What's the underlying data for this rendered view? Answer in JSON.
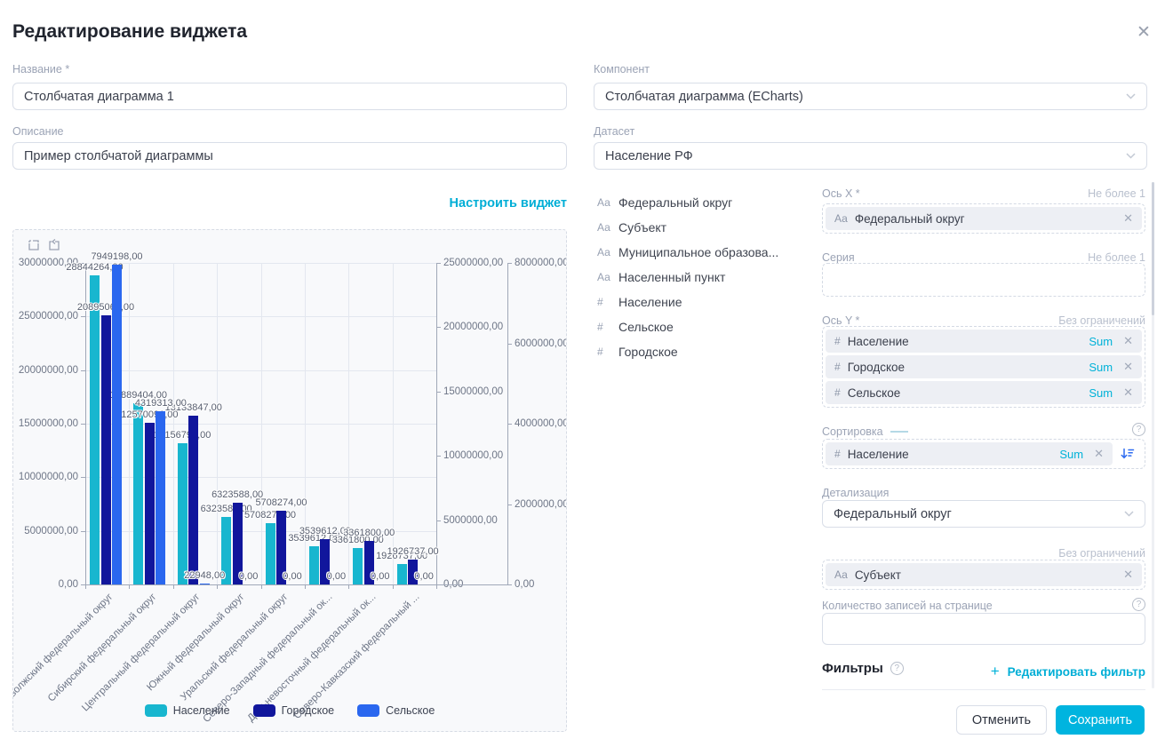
{
  "dialog": {
    "title": "Редактирование виджета"
  },
  "left_panel": {
    "name": {
      "label": "Название *",
      "value": "Столбчатая диаграмма 1"
    },
    "description": {
      "label": "Описание",
      "value": "Пример столбчатой диаграммы"
    },
    "configure_link": "Настроить виджет"
  },
  "right_panel": {
    "component": {
      "label": "Компонент",
      "value": "Столбчатая диаграмма (ECharts)"
    },
    "dataset": {
      "label": "Датасет",
      "value": "Население РФ"
    },
    "fields": [
      {
        "prefix": "Аа",
        "label": "Федеральный округ"
      },
      {
        "prefix": "Аа",
        "label": "Субъект"
      },
      {
        "prefix": "Аа",
        "label": "Муниципальное образова..."
      },
      {
        "prefix": "Аа",
        "label": "Населенный пункт"
      },
      {
        "prefix": "#",
        "label": "Население"
      },
      {
        "prefix": "#",
        "label": "Сельское"
      },
      {
        "prefix": "#",
        "label": "Городское"
      }
    ],
    "axis_x": {
      "label": "Ось X *",
      "limit": "Не более 1",
      "chips": [
        {
          "prefix": "Аа",
          "label": "Федеральный округ"
        }
      ]
    },
    "series_slot": {
      "label": "Серия",
      "limit": "Не более 1",
      "chips": []
    },
    "axis_y": {
      "label": "Ось Y *",
      "limit": "Без ограничений",
      "chips": [
        {
          "prefix": "#",
          "label": "Население",
          "agg": "Sum"
        },
        {
          "prefix": "#",
          "label": "Городское",
          "agg": "Sum"
        },
        {
          "prefix": "#",
          "label": "Сельское",
          "agg": "Sum"
        }
      ]
    },
    "sorting": {
      "label": "Сортировка",
      "chips": [
        {
          "prefix": "#",
          "label": "Население",
          "agg": "Sum"
        }
      ]
    },
    "detail": {
      "label": "Детализация",
      "value": "Федеральный округ",
      "limit": "Без ограничений",
      "chips": [
        {
          "prefix": "Аа",
          "label": "Субъект"
        }
      ]
    },
    "page_size": {
      "label": "Количество записей на странице",
      "value": ""
    },
    "filters": {
      "label": "Фильтры",
      "edit_link": "Редактировать фильтр",
      "plus": "+"
    },
    "buttons": {
      "cancel": "Отменить",
      "save": "Сохранить"
    }
  },
  "colors": {
    "accent": "#00b2d8",
    "naselenie": "#18b6cf",
    "gorodskoe": "#11169c",
    "selskoe": "#2a67ef"
  },
  "chart_data": {
    "type": "bar",
    "categories": [
      "Приволжский федеральный округ",
      "Сибирский федеральный округ",
      "Центральный федеральный округ",
      "Южный федеральный округ",
      "Уральский федеральный округ",
      "Северо-Западный федеральный ок...",
      "Дальневосточный федеральный ок...",
      "Северо-Кавказский федеральный ..."
    ],
    "series": [
      {
        "name": "Население",
        "color": "#18b6cf",
        "axis": 0,
        "values": [
          28844264,
          16889404,
          13156795,
          6323588,
          5708274,
          3539612,
          3361800,
          1926737
        ]
      },
      {
        "name": "Городское",
        "color": "#11169c",
        "axis": 1,
        "values": [
          20895066,
          12570091,
          13133847,
          6323588,
          5708274,
          3539612,
          3361800,
          1926737
        ]
      },
      {
        "name": "Сельское",
        "color": "#2a67ef",
        "axis": 2,
        "values": [
          7949198,
          4319313,
          22948,
          0,
          0,
          0,
          0,
          0
        ]
      }
    ],
    "y_axes": [
      {
        "max": 30000000,
        "interval": 5000000
      },
      {
        "max": 25000000,
        "interval": 5000000
      },
      {
        "max": 8000000,
        "interval": 2000000
      }
    ],
    "value_label_decimals": 2,
    "decimal_separator": ",",
    "grid": true,
    "legend_position": "bottom"
  }
}
